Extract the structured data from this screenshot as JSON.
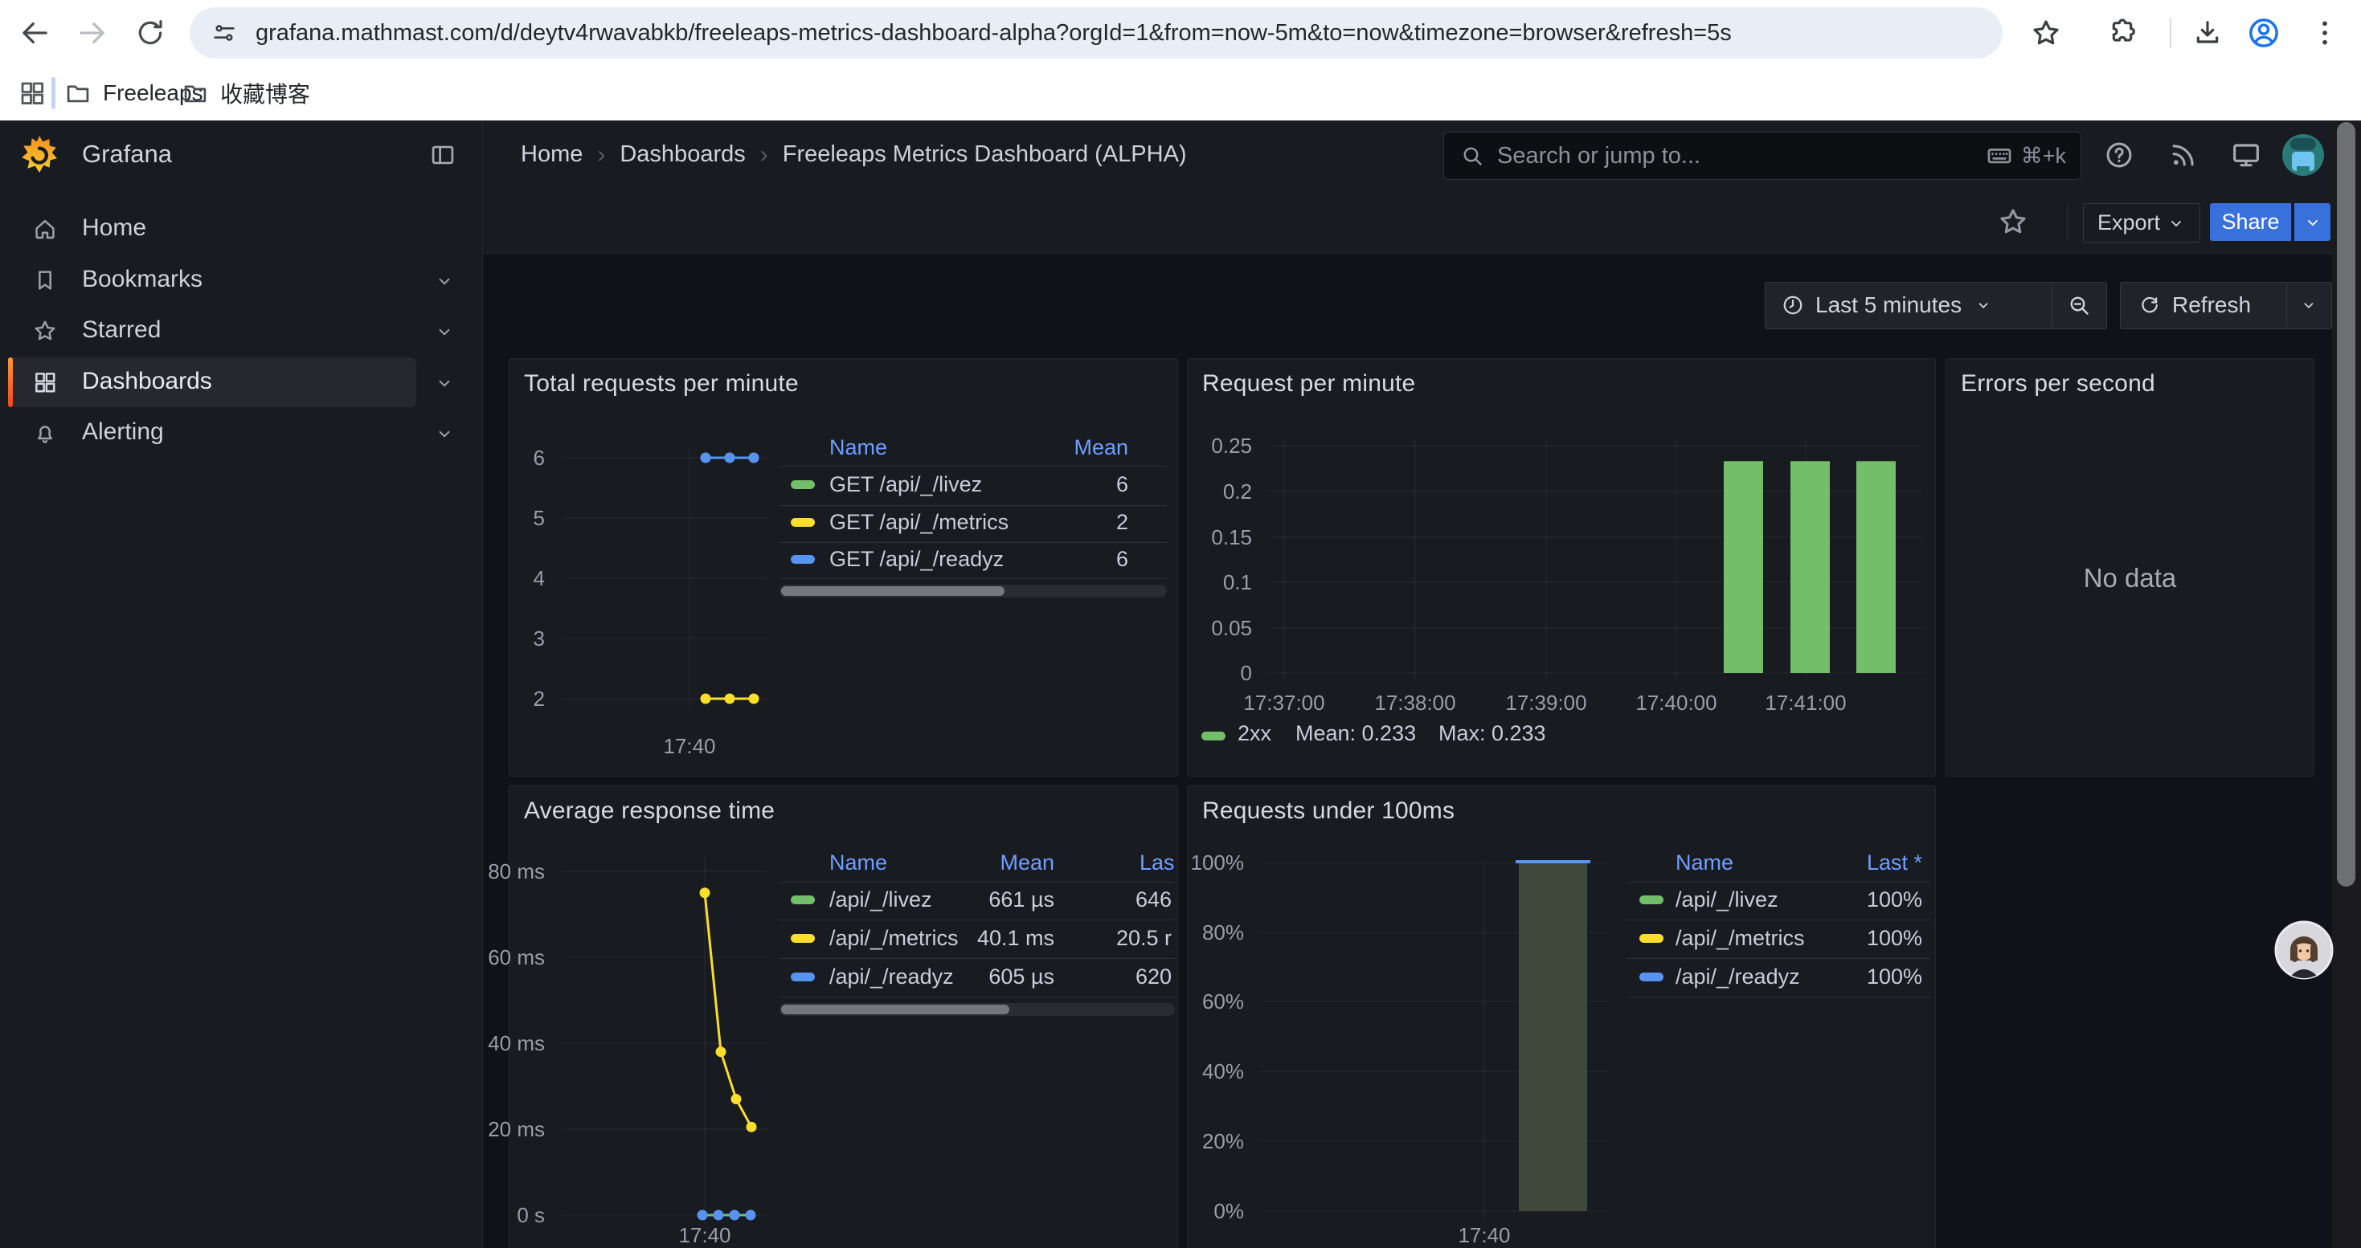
{
  "browser": {
    "url": "grafana.mathmast.com/d/deytv4rwavabkb/freeleaps-metrics-dashboard-alpha?orgId=1&from=now-5m&to=now&timezone=browser&refresh=5s",
    "bookmarks": [
      "Freeleaps",
      "收藏博客"
    ]
  },
  "grafana": {
    "brand": "Grafana",
    "breadcrumbs": [
      "Home",
      "Dashboards",
      "Freeleaps Metrics Dashboard (ALPHA)"
    ],
    "search": {
      "placeholder": "Search or jump to...",
      "shortcut": "⌘+k"
    },
    "actions": {
      "export": "Export",
      "share": "Share"
    },
    "time": {
      "range": "Last 5 minutes",
      "refresh": "Refresh"
    },
    "sidebar": [
      {
        "label": "Home",
        "icon": "home",
        "chevron": false,
        "active": false
      },
      {
        "label": "Bookmarks",
        "icon": "bookmark",
        "chevron": true,
        "active": false
      },
      {
        "label": "Starred",
        "icon": "star",
        "chevron": true,
        "active": false
      },
      {
        "label": "Dashboards",
        "icon": "apps",
        "chevron": true,
        "active": true
      },
      {
        "label": "Alerting",
        "icon": "bell",
        "chevron": true,
        "active": false
      }
    ]
  },
  "panels": {
    "errors": {
      "title": "Errors per second",
      "message": "No data"
    }
  },
  "colors": {
    "green": "#73BF69",
    "yellow": "#FADE2A",
    "blue": "#5794F2",
    "link_blue": "#6E9FFF",
    "share_blue": "#3871DC",
    "active_indicator_top": "#FF9933",
    "active_indicator_bottom": "#F0481F",
    "bar_fill_olive": "#3e4939"
  },
  "chart_data": [
    {
      "panel": "total-requests-per-minute",
      "type": "line",
      "title": "Total requests per minute",
      "x_tick": "17:40",
      "y_ticks": [
        6,
        5,
        4,
        3,
        2
      ],
      "ylim": [
        2,
        6
      ],
      "legend_headers": [
        "Name",
        "Mean"
      ],
      "series": [
        {
          "name": "GET /api/_/livez",
          "color": "#73BF69",
          "mean": 6,
          "points_y": [
            6,
            6,
            6
          ]
        },
        {
          "name": "GET /api/_/metrics",
          "color": "#FADE2A",
          "mean": 2,
          "points_y": [
            2,
            2,
            2
          ]
        },
        {
          "name": "GET /api/_/readyz",
          "color": "#5794F2",
          "mean": 6,
          "points_y": [
            6,
            6,
            6
          ]
        }
      ]
    },
    {
      "panel": "request-per-minute",
      "type": "bar",
      "title": "Request per minute",
      "x_ticks": [
        "17:37:00",
        "17:38:00",
        "17:39:00",
        "17:40:00",
        "17:41:00"
      ],
      "y_ticks": [
        "0.25",
        "0.2",
        "0.15",
        "0.1",
        "0.05",
        "0"
      ],
      "ylim": [
        0,
        0.25
      ],
      "series": [
        {
          "name": "2xx",
          "color": "#73BF69",
          "values": [
            0.233,
            0.233,
            0.233
          ],
          "mean": 0.233,
          "max": 0.233
        }
      ],
      "legend": {
        "name": "2xx",
        "mean": "Mean: 0.233",
        "max": "Max: 0.233"
      }
    },
    {
      "panel": "average-response-time",
      "type": "line",
      "title": "Average response time",
      "x_tick": "17:40",
      "y_ticks": [
        "80 ms",
        "60 ms",
        "40 ms",
        "20 ms",
        "0 s"
      ],
      "ylim_ms": [
        0,
        80
      ],
      "legend_headers": [
        "Name",
        "Mean",
        "Las"
      ],
      "series": [
        {
          "name": "/api/_/livez",
          "color": "#73BF69",
          "mean": "661 µs",
          "last": "646",
          "points_ms": [
            0.66,
            0.66,
            0.65,
            0.646
          ]
        },
        {
          "name": "/api/_/metrics",
          "color": "#FADE2A",
          "mean": "40.1 ms",
          "last": "20.5 r",
          "points_ms": [
            75,
            38,
            27,
            20.5
          ]
        },
        {
          "name": "/api/_/readyz",
          "color": "#5794F2",
          "mean": "605 µs",
          "last": "620",
          "points_ms": [
            0.6,
            0.61,
            0.6,
            0.62
          ]
        }
      ]
    },
    {
      "panel": "requests-under-100ms",
      "type": "bar",
      "title": "Requests under 100ms",
      "x_tick": "17:40",
      "y_ticks": [
        "100%",
        "80%",
        "60%",
        "40%",
        "20%",
        "0%"
      ],
      "ylim_pct": [
        0,
        100
      ],
      "bar": {
        "value_pct": 100,
        "fill": "#3e4939",
        "top_color": "#5794F2"
      },
      "legend_headers": [
        "Name",
        "Last *"
      ],
      "series": [
        {
          "name": "/api/_/livez",
          "color": "#73BF69",
          "last": "100%"
        },
        {
          "name": "/api/_/metrics",
          "color": "#FADE2A",
          "last": "100%"
        },
        {
          "name": "/api/_/readyz",
          "color": "#5794F2",
          "last": "100%"
        }
      ]
    }
  ]
}
